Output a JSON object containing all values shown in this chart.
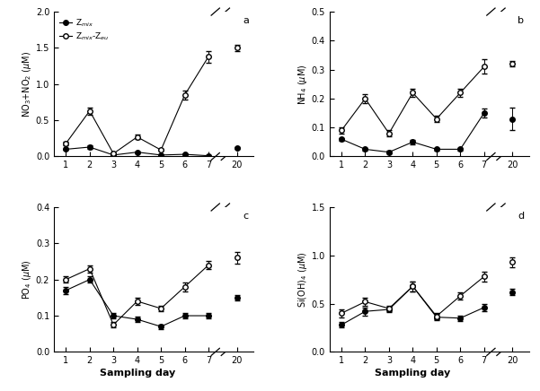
{
  "panel_a": {
    "label": "a",
    "ylabel": "NO$_3$+NO$_2$ ($\\mu$M)",
    "ylim": [
      0,
      2.0
    ],
    "yticks": [
      0.0,
      0.5,
      1.0,
      1.5,
      2.0
    ],
    "days": [
      1,
      2,
      3,
      4,
      5,
      6,
      7
    ],
    "zmix_y": [
      0.1,
      0.13,
      0.02,
      0.06,
      0.02,
      0.03,
      0.01
    ],
    "zmix_yerr": [
      0.01,
      0.02,
      0.005,
      0.01,
      0.005,
      0.005,
      0.005
    ],
    "zeu_y": [
      0.18,
      0.63,
      0.04,
      0.27,
      0.09,
      0.85,
      1.38
    ],
    "zeu_yerr": [
      0.02,
      0.05,
      0.015,
      0.03,
      0.015,
      0.06,
      0.08
    ],
    "day20_zmix": 0.12,
    "day20_zmix_err": 0.01,
    "day20_zeu": 1.5,
    "day20_zeu_err": 0.04
  },
  "panel_b": {
    "label": "b",
    "ylabel": "NH$_4$ ($\\mu$M)",
    "ylim": [
      0,
      0.5
    ],
    "yticks": [
      0.0,
      0.1,
      0.2,
      0.3,
      0.4,
      0.5
    ],
    "days": [
      1,
      2,
      3,
      4,
      5,
      6,
      7
    ],
    "zmix_y": [
      0.06,
      0.025,
      0.015,
      0.05,
      0.025,
      0.025,
      0.15
    ],
    "zmix_yerr": [
      0.005,
      0.005,
      0.004,
      0.008,
      0.005,
      0.005,
      0.015
    ],
    "zeu_y": [
      0.09,
      0.2,
      0.08,
      0.22,
      0.13,
      0.22,
      0.31
    ],
    "zeu_yerr": [
      0.01,
      0.015,
      0.01,
      0.015,
      0.01,
      0.015,
      0.025
    ],
    "day20_zmix": 0.13,
    "day20_zmix_err": 0.04,
    "day20_zeu": 0.32,
    "day20_zeu_err": 0.01
  },
  "panel_c": {
    "label": "c",
    "ylabel": "PO$_4$ ($\\mu$M)",
    "ylim": [
      0,
      0.4
    ],
    "yticks": [
      0.0,
      0.1,
      0.2,
      0.3,
      0.4
    ],
    "days": [
      1,
      2,
      3,
      4,
      5,
      6,
      7
    ],
    "zmix_y": [
      0.17,
      0.2,
      0.1,
      0.09,
      0.07,
      0.1,
      0.1
    ],
    "zmix_yerr": [
      0.01,
      0.008,
      0.008,
      0.007,
      0.006,
      0.008,
      0.007
    ],
    "zeu_y": [
      0.2,
      0.23,
      0.075,
      0.14,
      0.12,
      0.18,
      0.24
    ],
    "zeu_yerr": [
      0.008,
      0.01,
      0.007,
      0.01,
      0.008,
      0.012,
      0.012
    ],
    "day20_zmix": 0.15,
    "day20_zmix_err": 0.008,
    "day20_zeu": 0.26,
    "day20_zeu_err": 0.015
  },
  "panel_d": {
    "label": "d",
    "ylabel": "Si(OH)$_4$ ($\\mu$M)",
    "ylim": [
      0,
      1.5
    ],
    "yticks": [
      0.0,
      0.5,
      1.0,
      1.5
    ],
    "days": [
      1,
      2,
      3,
      4,
      5,
      6,
      7
    ],
    "zmix_y": [
      0.28,
      0.42,
      0.44,
      0.68,
      0.36,
      0.35,
      0.46
    ],
    "zmix_yerr": [
      0.03,
      0.04,
      0.03,
      0.05,
      0.03,
      0.03,
      0.04
    ],
    "zeu_y": [
      0.4,
      0.52,
      0.45,
      0.68,
      0.37,
      0.58,
      0.78
    ],
    "zeu_yerr": [
      0.04,
      0.04,
      0.03,
      0.05,
      0.03,
      0.04,
      0.05
    ],
    "day20_zmix": 0.62,
    "day20_zmix_err": 0.03,
    "day20_zeu": 0.93,
    "day20_zeu_err": 0.05
  },
  "legend_zmix": "Z$_{mix}$",
  "legend_zeu": "Z$_{mix}$-Z$_{eu}$",
  "xlabel": "Sampling day",
  "markersize": 4,
  "lw": 0.8
}
